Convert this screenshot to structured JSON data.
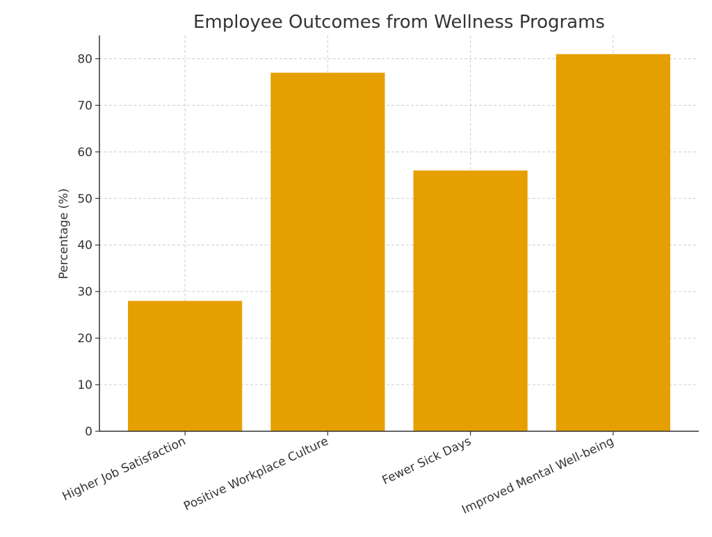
{
  "chart_data": {
    "type": "bar",
    "title": "Employee Outcomes from Wellness Programs",
    "xlabel": "",
    "ylabel": "Percentage (%)",
    "categories": [
      "Higher Job Satisfaction",
      "Positive Workplace Culture",
      "Fewer Sick Days",
      "Improved Mental Well-being"
    ],
    "values": [
      28,
      77,
      56,
      81
    ],
    "ylim": [
      0,
      85
    ],
    "yticks": [
      0,
      10,
      20,
      30,
      40,
      50,
      60,
      70,
      80
    ],
    "grid": true,
    "bar_color": "#E69F00"
  }
}
